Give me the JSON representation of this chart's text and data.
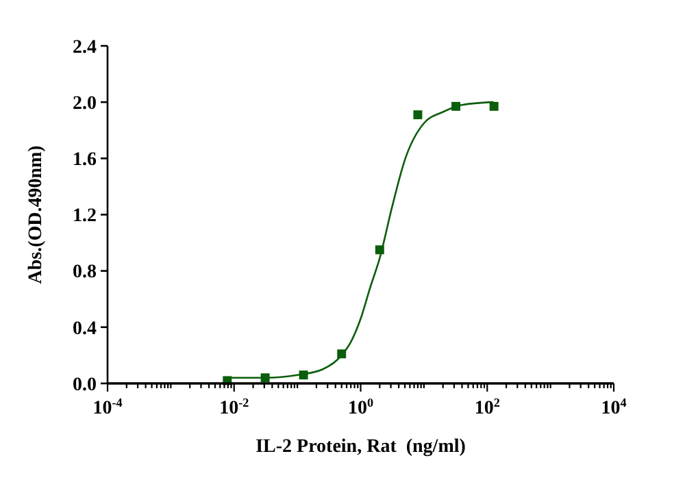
{
  "chart_data": {
    "type": "scatter",
    "xlabel": "IL-2 Protein, Rat  (ng/ml)",
    "ylabel": "Abs.(OD.490nm)",
    "log": "x",
    "marker": "square",
    "grid": false,
    "xlim": [
      0.0001,
      10000
    ],
    "ylim": [
      0,
      2.4
    ],
    "yticks": [
      {
        "value": 0,
        "label": "0.0"
      },
      0.4,
      0.8,
      1.2,
      1.6,
      {
        "value": 2,
        "label": "2.0"
      },
      2.4
    ],
    "xticks": [
      {
        "value": 0.0001,
        "label": "10$^{-4}$"
      },
      {
        "value": 0.0002,
        "label": null
      },
      {
        "value": 0.0003,
        "label": null
      },
      {
        "value": 0.0004,
        "label": null
      },
      {
        "value": 0.0005,
        "label": null
      },
      {
        "value": 0.0006,
        "label": null
      },
      {
        "value": 0.0007,
        "label": null
      },
      {
        "value": 0.0008,
        "label": null
      },
      {
        "value": 0.0009,
        "label": null
      },
      {
        "value": 0.001,
        "label": null
      },
      {
        "value": 0.002,
        "label": null
      },
      {
        "value": 0.003,
        "label": null
      },
      {
        "value": 0.004,
        "label": null
      },
      {
        "value": 0.005,
        "label": null
      },
      {
        "value": 0.006,
        "label": null
      },
      {
        "value": 0.007,
        "label": null
      },
      {
        "value": 0.008,
        "label": null
      },
      {
        "value": 0.009,
        "label": null
      },
      {
        "value": 0.01,
        "label": "10$^{-2}$"
      },
      {
        "value": 0.02,
        "label": null
      },
      {
        "value": 0.03,
        "label": null
      },
      {
        "value": 0.04,
        "label": null
      },
      {
        "value": 0.05,
        "label": null
      },
      {
        "value": 0.06,
        "label": null
      },
      {
        "value": 0.07,
        "label": null
      },
      {
        "value": 0.08,
        "label": null
      },
      {
        "value": 0.09,
        "label": null
      },
      {
        "value": 0.1,
        "label": null
      },
      {
        "value": 0.2,
        "label": null
      },
      {
        "value": 0.3,
        "label": null
      },
      {
        "value": 0.4,
        "label": null
      },
      {
        "value": 0.5,
        "label": null
      },
      {
        "value": 0.6,
        "label": null
      },
      {
        "value": 0.7,
        "label": null
      },
      {
        "value": 0.8,
        "label": null
      },
      {
        "value": 0.9,
        "label": null
      },
      {
        "value": 1,
        "label": "10$^{0}$"
      },
      {
        "value": 2,
        "label": null
      },
      {
        "value": 3,
        "label": null
      },
      {
        "value": 4,
        "label": null
      },
      {
        "value": 5,
        "label": null
      },
      {
        "value": 6,
        "label": null
      },
      {
        "value": 7,
        "label": null
      },
      {
        "value": 8,
        "label": null
      },
      {
        "value": 9,
        "label": null
      },
      {
        "value": 10,
        "label": null
      },
      {
        "value": 20,
        "label": null
      },
      {
        "value": 30,
        "label": null
      },
      {
        "value": 40,
        "label": null
      },
      {
        "value": 50,
        "label": null
      },
      {
        "value": 60,
        "label": null
      },
      {
        "value": 70,
        "label": null
      },
      {
        "value": 80,
        "label": null
      },
      {
        "value": 90,
        "label": null
      },
      {
        "value": 100,
        "label": "10$^{2}$"
      },
      {
        "value": 200,
        "label": null
      },
      {
        "value": 300,
        "label": null
      },
      {
        "value": 400,
        "label": null
      },
      {
        "value": 500,
        "label": null
      },
      {
        "value": 600,
        "label": null
      },
      {
        "value": 700,
        "label": null
      },
      {
        "value": 800,
        "label": null
      },
      {
        "value": 900,
        "label": null
      },
      {
        "value": 1000,
        "label": null
      },
      {
        "value": 2000,
        "label": null
      },
      {
        "value": 3000,
        "label": null
      },
      {
        "value": 4000,
        "label": null
      },
      {
        "value": 5000,
        "label": null
      },
      {
        "value": 6000,
        "label": null
      },
      {
        "value": 7000,
        "label": null
      },
      {
        "value": 8000,
        "label": null
      },
      {
        "value": 9000,
        "label": null
      },
      {
        "value": 10000,
        "label": "10$^{4}$"
      }
    ],
    "series": [
      {
        "color": "#0b5e0b",
        "x": [
          0.0078,
          0.031,
          0.125,
          0.5,
          2,
          8,
          32,
          128
        ],
        "values": [
          0.02,
          0.04,
          0.06,
          0.21,
          0.95,
          1.91,
          1.97,
          1.97
        ]
      },
      {
        "type": "line",
        "marker": "none",
        "color": "#0b5e0b",
        "x": [
          0.0078,
          0.0316,
          0.1,
          0.25,
          0.5,
          0.71,
          1,
          1.41,
          2,
          3.16,
          5,
          10,
          20,
          40,
          126
        ],
        "values": [
          0.04,
          0.04,
          0.06,
          0.1,
          0.2,
          0.3,
          0.46,
          0.68,
          0.89,
          1.26,
          1.59,
          1.85,
          1.93,
          1.98,
          2.0
        ]
      }
    ]
  }
}
